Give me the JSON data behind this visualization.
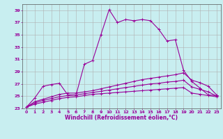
{
  "xlabel": "Windchill (Refroidissement éolien,°C)",
  "background_color": "#c8eef0",
  "grid_color": "#b0b0b0",
  "line_color": "#990099",
  "xlim": [
    -0.5,
    23.5
  ],
  "ylim": [
    23,
    40
  ],
  "xticks": [
    0,
    1,
    2,
    3,
    4,
    5,
    6,
    7,
    8,
    9,
    10,
    11,
    12,
    13,
    14,
    15,
    16,
    17,
    18,
    19,
    20,
    21,
    22,
    23
  ],
  "yticks": [
    23,
    25,
    27,
    29,
    31,
    33,
    35,
    37,
    39
  ],
  "series": [
    [
      23.2,
      24.7,
      26.6,
      26.9,
      27.1,
      25.2,
      25.2,
      30.2,
      30.8,
      35.0,
      39.1,
      37.0,
      37.5,
      37.3,
      37.5,
      37.3,
      35.9,
      34.0,
      34.2,
      29.2,
      27.4,
      26.3,
      25.2,
      25.1
    ],
    [
      23.2,
      24.1,
      24.5,
      24.9,
      25.3,
      25.5,
      25.5,
      25.7,
      25.9,
      26.2,
      26.5,
      26.8,
      27.1,
      27.4,
      27.7,
      27.9,
      28.1,
      28.3,
      28.5,
      28.8,
      27.6,
      27.2,
      26.6,
      25.2
    ],
    [
      23.2,
      23.9,
      24.3,
      24.6,
      24.9,
      25.1,
      25.2,
      25.4,
      25.6,
      25.8,
      26.0,
      26.2,
      26.4,
      26.6,
      26.8,
      27.0,
      27.1,
      27.3,
      27.4,
      27.6,
      26.5,
      26.1,
      25.7,
      25.0
    ],
    [
      23.2,
      23.7,
      24.0,
      24.3,
      24.6,
      24.8,
      24.9,
      25.1,
      25.3,
      25.4,
      25.5,
      25.6,
      25.7,
      25.8,
      25.9,
      26.0,
      26.1,
      26.2,
      26.3,
      26.4,
      25.5,
      25.3,
      25.1,
      24.9
    ]
  ],
  "marker": "+",
  "markersize": 3,
  "linewidth": 0.8,
  "tick_fontsize": 4.5,
  "xlabel_fontsize": 5.5
}
